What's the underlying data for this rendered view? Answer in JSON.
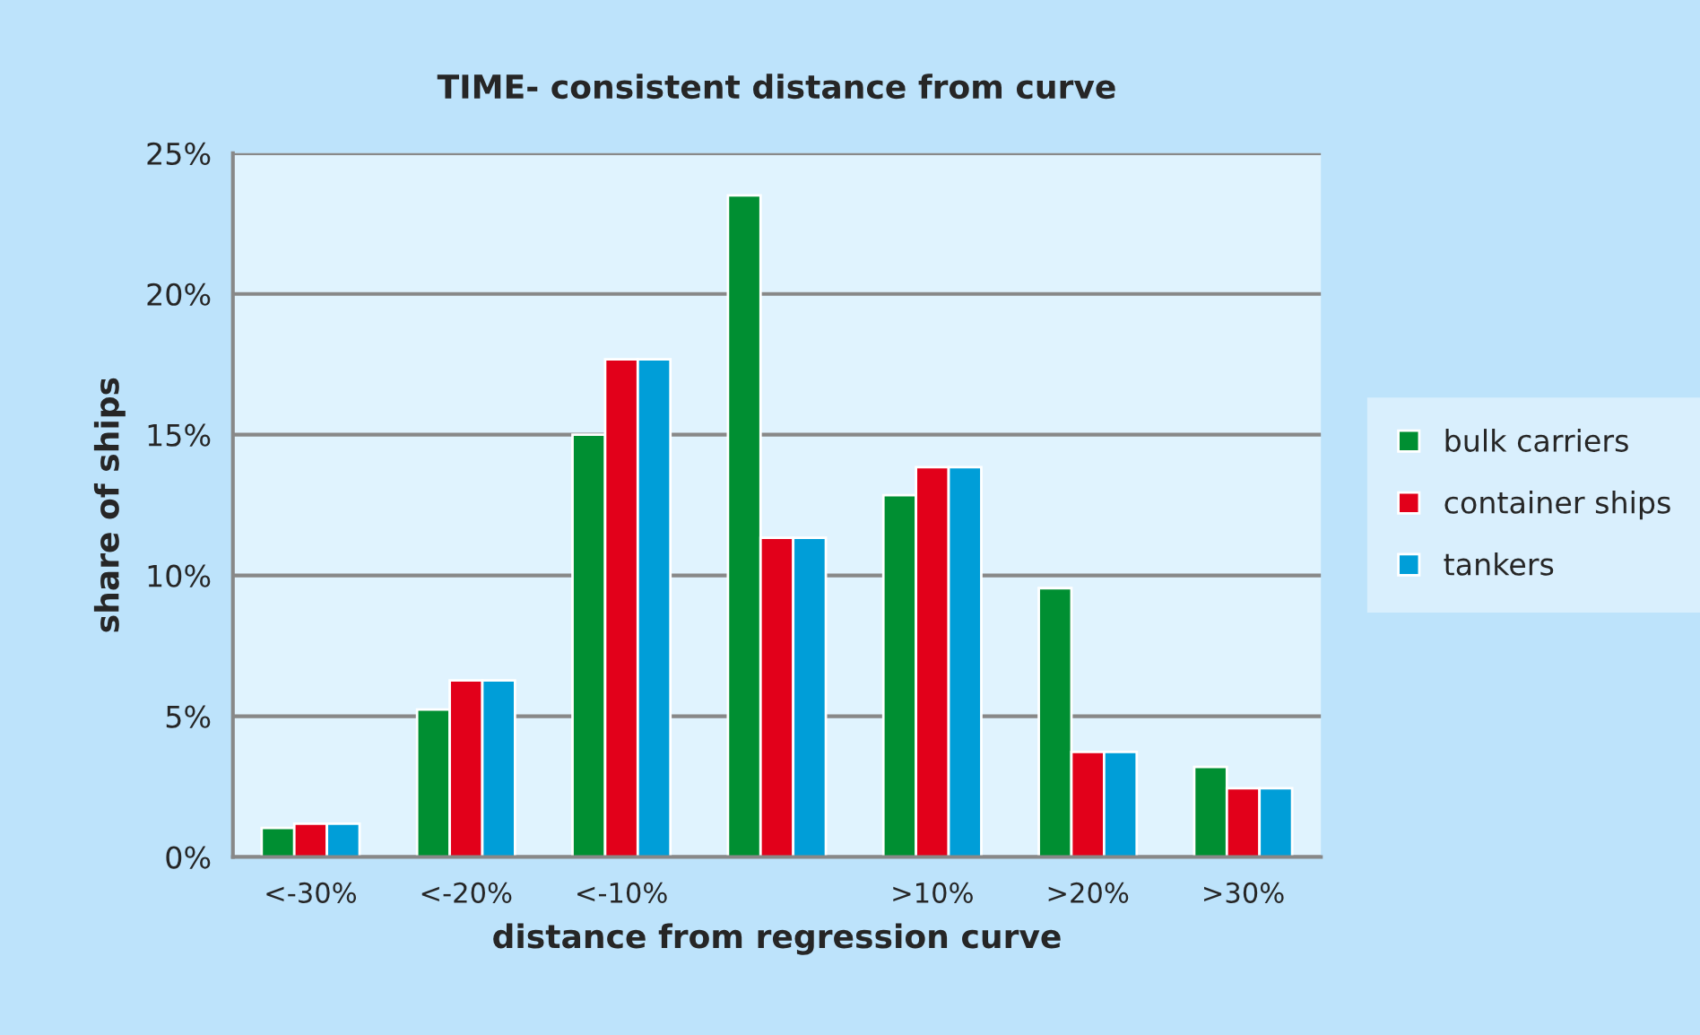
{
  "chart_data": {
    "type": "bar",
    "title": "TIME- consistent distance from curve",
    "xlabel": "distance from regression curve",
    "ylabel": "share of ships",
    "categories": [
      "<-30%",
      "<-20%",
      "<-10%",
      null,
      ">10%",
      ">20%",
      ">30%"
    ],
    "series": [
      {
        "name": "bulk carriers",
        "color": "#008f32",
        "values": [
          1.03,
          5.24,
          15.0,
          23.5,
          12.85,
          9.55,
          3.2
        ]
      },
      {
        "name": "container ships",
        "color": "#e2001a",
        "values": [
          1.18,
          6.27,
          17.68,
          11.34,
          13.85,
          3.73,
          2.44
        ]
      },
      {
        "name": "tankers",
        "color": "#009ed8",
        "values": [
          1.18,
          6.27,
          17.68,
          11.34,
          13.85,
          3.73,
          2.44
        ]
      }
    ],
    "ylim": [
      0,
      25
    ],
    "yticks": [
      {
        "value": 0,
        "label": "0%"
      },
      {
        "value": 5,
        "label": "5%"
      },
      {
        "value": 10,
        "label": "10%"
      },
      {
        "value": 15,
        "label": "15%"
      },
      {
        "value": 20,
        "label": "20%"
      },
      {
        "value": 25,
        "label": "25%"
      }
    ],
    "grid": "y",
    "legend": "right"
  }
}
